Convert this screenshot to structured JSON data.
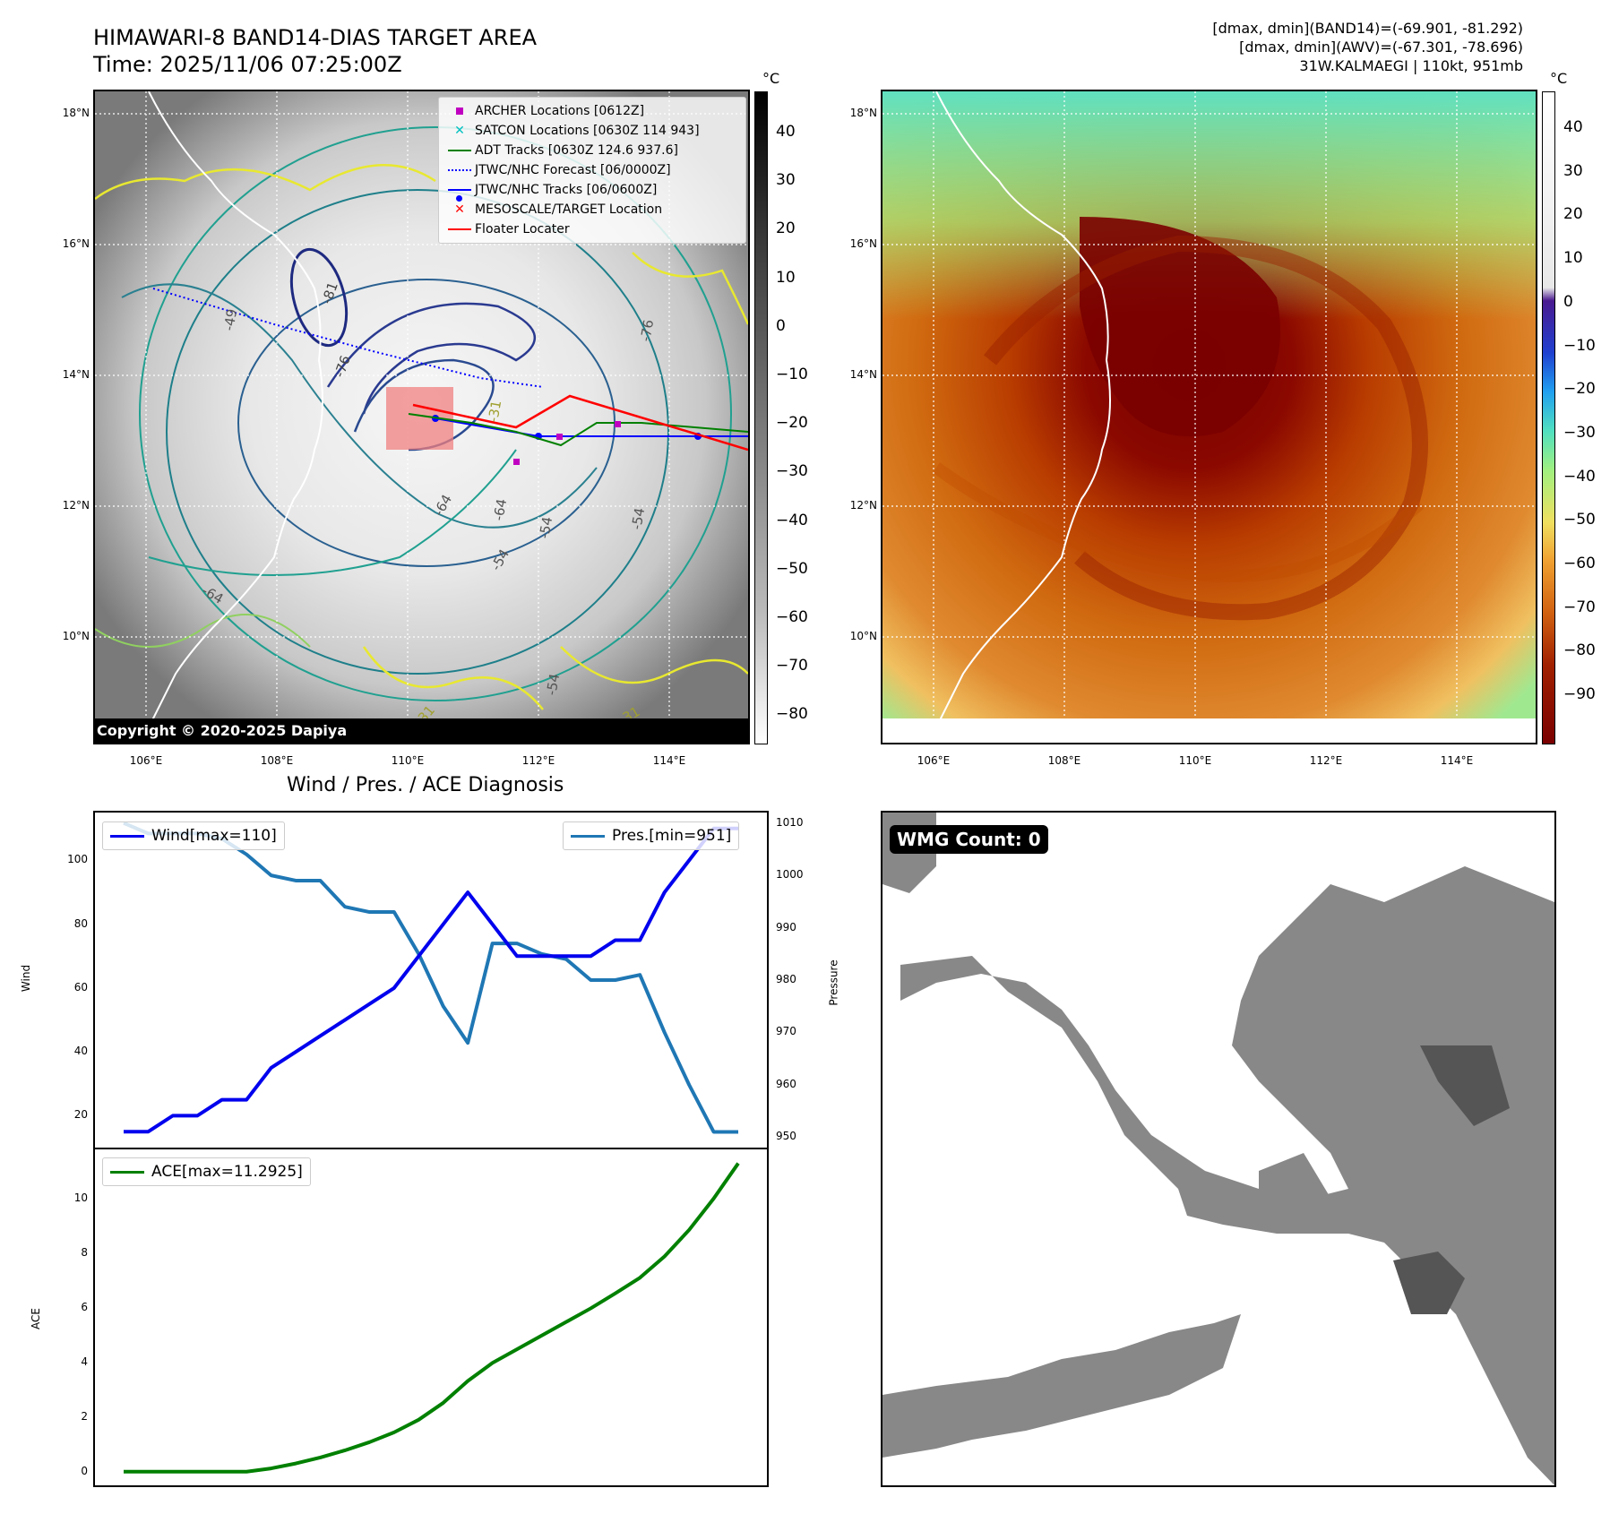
{
  "header": {
    "title": "HIMAWARI-8 BAND14-DIAS TARGET AREA",
    "time": "Time: 2025/11/06 07:25:00Z",
    "dmax_band14": "[dmax, dmin](BAND14)=(-69.901, -81.292)",
    "dmax_awv": "[dmax, dmin](AWV)=(-67.301, -78.696)",
    "storm_info": "31W.KALMAEGI | 110kt, 951mb"
  },
  "map": {
    "lon_ticks": [
      "106°E",
      "108°E",
      "110°E",
      "112°E",
      "114°E"
    ],
    "lat_ticks": [
      "18°N",
      "16°N",
      "14°N",
      "12°N",
      "10°N"
    ],
    "copyright": "Copyright © 2020-2025 Dapiya",
    "contour_labels": [
      "-81",
      "-76",
      "-64",
      "-54",
      "-31",
      "-54",
      "-64",
      "-31",
      "-54",
      "-64",
      "-31",
      "-49",
      "-54",
      "-76"
    ],
    "colorbar_unit": "°C",
    "gray_colorbar_ticks": [
      "40",
      "30",
      "20",
      "10",
      "0",
      "−10",
      "−20",
      "−30",
      "−40",
      "−50",
      "−60",
      "−70",
      "−80"
    ],
    "color_colorbar_ticks": [
      "40",
      "30",
      "20",
      "10",
      "0",
      "−10",
      "−20",
      "−30",
      "−40",
      "−50",
      "−60",
      "−70",
      "−80",
      "−90"
    ],
    "legend": [
      {
        "label": "ARCHER Locations [0612Z]",
        "color": "#c000c0",
        "symbol": "square"
      },
      {
        "label": "SATCON Locations [0630Z 114 943]",
        "color": "#00c0c0",
        "symbol": "x"
      },
      {
        "label": "ADT Tracks [0630Z 124.6 937.6]",
        "color": "#008000",
        "symbol": "line"
      },
      {
        "label": "JTWC/NHC Forecast [06/0000Z]",
        "color": "#0000ff",
        "symbol": "dotted"
      },
      {
        "label": "JTWC/NHC Tracks [06/0600Z]",
        "color": "#0000ff",
        "symbol": "line-dot"
      },
      {
        "label": "MESOSCALE/TARGET Location",
        "color": "#ff0000",
        "symbol": "x"
      },
      {
        "label": "Floater Locater",
        "color": "#ff0000",
        "symbol": "line"
      }
    ]
  },
  "diagnosis": {
    "title": "Wind / Pres. / ACE Diagnosis",
    "wind_label": "Wind",
    "pressure_label": "Pressure",
    "ace_label": "ACE",
    "legend_wind": "Wind[max=110]",
    "legend_pres": "Pres.[min=951]",
    "legend_ace": "ACE[max=11.2925]",
    "wind_ticks": [
      "100",
      "80",
      "60",
      "40",
      "20"
    ],
    "pres_ticks": [
      "1010",
      "1000",
      "990",
      "980",
      "970",
      "960",
      "950"
    ],
    "ace_ticks": [
      "10",
      "8",
      "6",
      "4",
      "2",
      "0"
    ]
  },
  "wmg": {
    "label": "WMG Count: 0"
  },
  "colors": {
    "wind": "#0000ee",
    "pressure": "#1f77b4",
    "ace": "#008000"
  },
  "chart_data": [
    {
      "type": "line",
      "title": "Wind / Pres. / ACE Diagnosis",
      "xlabel": "",
      "ylabel": "Wind",
      "ylim": [
        10,
        115
      ],
      "x": [
        0,
        1,
        2,
        3,
        4,
        5,
        6,
        7,
        8,
        9,
        10,
        11,
        12,
        13,
        14,
        15,
        16,
        17,
        18,
        19,
        20,
        21,
        22,
        23,
        24,
        25
      ],
      "series": [
        {
          "name": "Wind[max=110]",
          "axis": "left",
          "values": [
            15,
            15,
            20,
            20,
            25,
            25,
            35,
            40,
            45,
            50,
            55,
            60,
            70,
            80,
            90,
            80,
            70,
            70,
            70,
            70,
            75,
            75,
            90,
            100,
            110,
            110
          ]
        }
      ]
    },
    {
      "type": "line",
      "ylabel": "Pressure",
      "ylim": [
        948,
        1012
      ],
      "x": [
        0,
        1,
        2,
        3,
        4,
        5,
        6,
        7,
        8,
        9,
        10,
        11,
        12,
        13,
        14,
        15,
        16,
        17,
        18,
        19,
        20,
        21,
        22,
        23,
        24,
        25
      ],
      "series": [
        {
          "name": "Pres.[min=951]",
          "axis": "right",
          "values": [
            1010,
            1008,
            1008,
            1008,
            1007,
            1004,
            1000,
            999,
            999,
            994,
            993,
            993,
            985,
            975,
            968,
            987,
            987,
            985,
            984,
            980,
            980,
            981,
            970,
            960,
            951,
            951
          ]
        }
      ]
    },
    {
      "type": "line",
      "ylabel": "ACE",
      "ylim": [
        -0.5,
        11.8
      ],
      "x": [
        0,
        1,
        2,
        3,
        4,
        5,
        6,
        7,
        8,
        9,
        10,
        11,
        12,
        13,
        14,
        15,
        16,
        17,
        18,
        19,
        20,
        21,
        22,
        23,
        24,
        25
      ],
      "series": [
        {
          "name": "ACE[max=11.2925]",
          "values": [
            0,
            0,
            0,
            0,
            0,
            0,
            0.12,
            0.3,
            0.52,
            0.78,
            1.08,
            1.44,
            1.9,
            2.52,
            3.32,
            3.98,
            4.48,
            4.98,
            5.48,
            5.98,
            6.53,
            7.1,
            7.88,
            8.85,
            10.0,
            11.29
          ]
        }
      ]
    }
  ]
}
